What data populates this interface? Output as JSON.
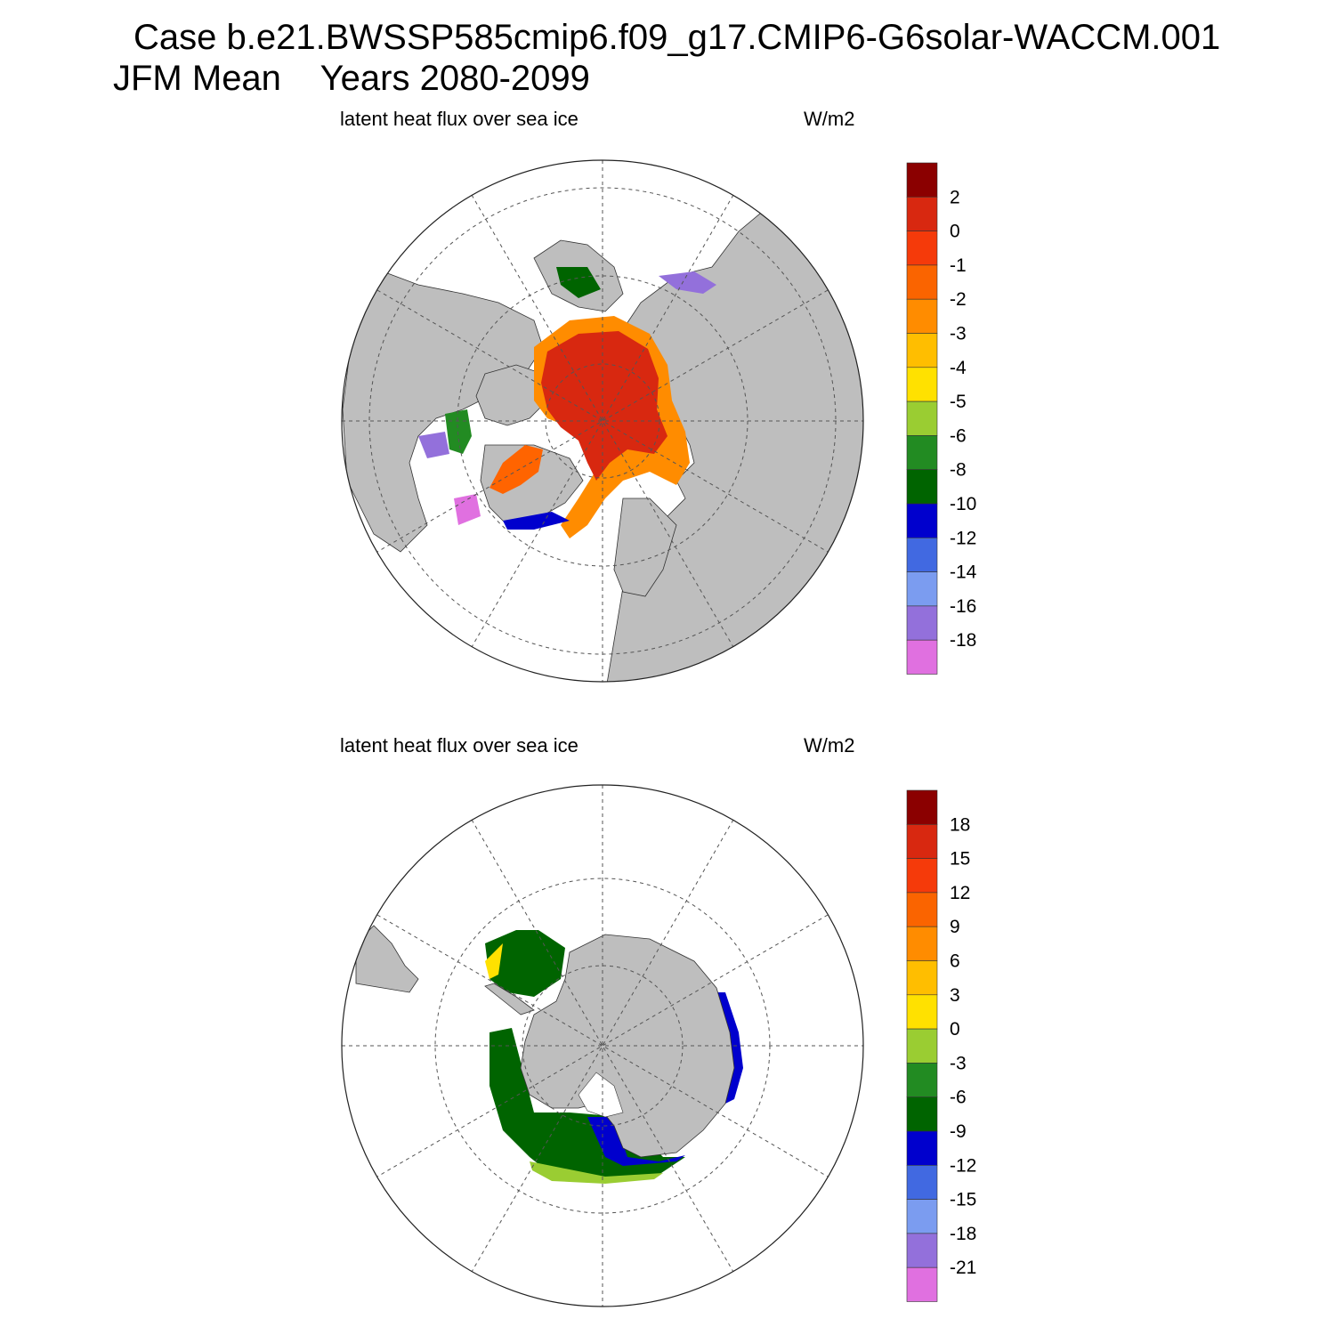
{
  "title": {
    "line1": "Case b.e21.BWSSP585cmip6.f09_g17.CMIP6-G6solar-WACCM.001",
    "line2": "JFM Mean    Years 2080-2099"
  },
  "panels": [
    {
      "variable": "latent heat flux over sea ice",
      "units": "W/m2",
      "hemisphere": "north",
      "colorbar": {
        "colors": [
          "#8B0000",
          "#D82810",
          "#F53A0A",
          "#FA6400",
          "#FF8C00",
          "#FFBE00",
          "#FFE100",
          "#9ACD32",
          "#228B22",
          "#006400",
          "#0000CD",
          "#4169E1",
          "#7B9CF0",
          "#9370DB",
          "#E070E0"
        ],
        "labels": [
          "2",
          "0",
          "-1",
          "-2",
          "-3",
          "-4",
          "-5",
          "-6",
          "-8",
          "-10",
          "-12",
          "-14",
          "-16",
          "-18"
        ]
      }
    },
    {
      "variable": "latent heat flux over sea ice",
      "units": "W/m2",
      "hemisphere": "south",
      "colorbar": {
        "colors": [
          "#8B0000",
          "#D82810",
          "#F53A0A",
          "#FA6400",
          "#FF8C00",
          "#FFBE00",
          "#FFE100",
          "#9ACD32",
          "#228B22",
          "#006400",
          "#0000CD",
          "#4169E1",
          "#7B9CF0",
          "#9370DB",
          "#E070E0"
        ],
        "labels": [
          "18",
          "15",
          "12",
          "9",
          "6",
          "3",
          "0",
          "-3",
          "-6",
          "-9",
          "-12",
          "-15",
          "-18",
          "-21"
        ]
      }
    }
  ],
  "colors": {
    "land": "#BEBEBE",
    "ocean": "#FFFFFF",
    "grid": "#555555"
  }
}
